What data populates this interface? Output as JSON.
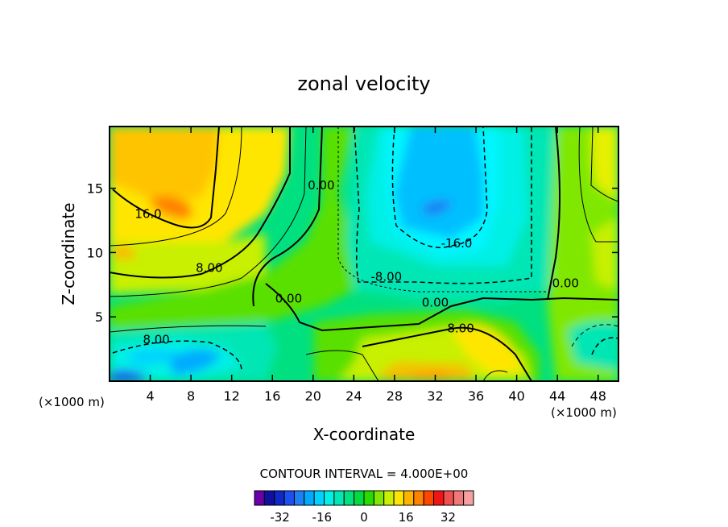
{
  "chart_data": {
    "type": "heatmap",
    "title": "zonal velocity",
    "xlabel": "X-coordinate",
    "ylabel": "Z-coordinate",
    "x_unit_left": "(×1000 m)",
    "x_unit_right": "(×1000 m)",
    "xlim": [
      0,
      50
    ],
    "ylim": [
      0,
      19.8
    ],
    "x_ticks": [
      4,
      8,
      12,
      16,
      20,
      24,
      28,
      32,
      36,
      40,
      44,
      48
    ],
    "y_ticks": [
      5,
      10,
      15
    ],
    "contour_interval_label": "CONTOUR INTERVAL = 4.000E+00",
    "contour_labels": [
      {
        "text": "16.0",
        "x": 3.8,
        "y": 12.7
      },
      {
        "text": "8.00",
        "x": 9.8,
        "y": 8.5
      },
      {
        "text": "8.00",
        "x": 4.6,
        "y": 2.9
      },
      {
        "text": "0.00",
        "x": 20.8,
        "y": 14.9
      },
      {
        "text": "0.00",
        "x": 17.6,
        "y": 6.1
      },
      {
        "text": "-8.00",
        "x": 27.2,
        "y": 7.8
      },
      {
        "text": "-16.0",
        "x": 34.1,
        "y": 10.4
      },
      {
        "text": "0.00",
        "x": 32.0,
        "y": 5.8
      },
      {
        "text": "8.00",
        "x": 34.5,
        "y": 3.8
      },
      {
        "text": "0.00",
        "x": 44.8,
        "y": 7.3
      }
    ],
    "colorbar": {
      "ticks": [
        -32,
        -16,
        0,
        16,
        32
      ],
      "levels": [
        -36,
        -32,
        -28,
        -24,
        -20,
        -16,
        -12,
        -8,
        -4,
        0,
        4,
        8,
        12,
        16,
        20,
        24,
        28,
        32,
        36
      ],
      "colors": [
        "#6a00a8",
        "#1010a0",
        "#1028c8",
        "#1e50f0",
        "#1e80f5",
        "#00aaff",
        "#00d2ff",
        "#00f0e6",
        "#00e6b4",
        "#00e080",
        "#00dc40",
        "#28dc00",
        "#80e800",
        "#c8f000",
        "#ffe600",
        "#ffb400",
        "#ff8200",
        "#ff4600",
        "#f01414",
        "#f05050",
        "#f07878",
        "#f8a0a0"
      ]
    },
    "field_samples": [
      {
        "x": 5,
        "y": 16,
        "value": 22
      },
      {
        "x": 6,
        "y": 13.5,
        "value": 26
      },
      {
        "x": 2,
        "y": 10,
        "value": 18
      },
      {
        "x": 10,
        "y": 11,
        "value": 14
      },
      {
        "x": 8,
        "y": 6,
        "value": 6
      },
      {
        "x": 3,
        "y": 2.5,
        "value": -6
      },
      {
        "x": 1.5,
        "y": 0.5,
        "value": -20
      },
      {
        "x": 8,
        "y": 1.6,
        "value": -14
      },
      {
        "x": 15,
        "y": 14,
        "value": 6
      },
      {
        "x": 22,
        "y": 13,
        "value": -2
      },
      {
        "x": 27,
        "y": 16,
        "value": -10
      },
      {
        "x": 31,
        "y": 14.5,
        "value": -20
      },
      {
        "x": 31,
        "y": 13.5,
        "value": -24
      },
      {
        "x": 30,
        "y": 10,
        "value": -14
      },
      {
        "x": 27,
        "y": 6,
        "value": -2
      },
      {
        "x": 20,
        "y": 5,
        "value": 2
      },
      {
        "x": 23,
        "y": 2.5,
        "value": 10
      },
      {
        "x": 31,
        "y": 0.6,
        "value": 26
      },
      {
        "x": 37,
        "y": 2.8,
        "value": 14
      },
      {
        "x": 38,
        "y": 12,
        "value": -6
      },
      {
        "x": 43,
        "y": 12,
        "value": 2
      },
      {
        "x": 44,
        "y": 5,
        "value": 2
      },
      {
        "x": 47,
        "y": 2.5,
        "value": -6
      },
      {
        "x": 49,
        "y": 15,
        "value": 14
      },
      {
        "x": 48,
        "y": 10,
        "value": 8
      }
    ]
  }
}
